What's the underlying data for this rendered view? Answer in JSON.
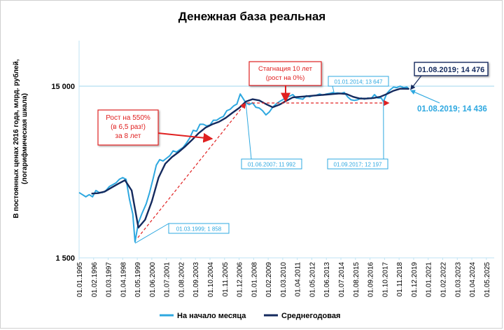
{
  "chart_data": {
    "type": "line",
    "title": "Денежная база реальная",
    "ylabel_line1": "В постоянных ценах 2016 года, млрд. рублей,",
    "ylabel_line2": "(логарифмическая шкала)",
    "y_scale": "log",
    "y_ticks": [
      1500,
      15000
    ],
    "y_tick_labels": [
      "1 500",
      "15 000"
    ],
    "x_tick_labels": [
      "01.01.1995",
      "01.02.1996",
      "01.03.1997",
      "01.04.1998",
      "01.05.1999",
      "01.06.2000",
      "01.07.2001",
      "01.08.2002",
      "01.09.2003",
      "01.10.2004",
      "01.11.2005",
      "01.12.2006",
      "01.01.2008",
      "01.02.2009",
      "01.03.2010",
      "01.04.2011",
      "01.05.2012",
      "01.06.2013",
      "01.07.2014",
      "01.08.2015",
      "01.09.2016",
      "01.10.2017",
      "01.11.2018",
      "01.12.2019",
      "01.01.2021",
      "01.02.2022",
      "01.03.2023",
      "01.04.2024",
      "01.05.2025"
    ],
    "x_range": [
      "1995-01-01",
      "2025-12-01"
    ],
    "legend_position": "bottom",
    "series": [
      {
        "name": "На начало месяца",
        "color": "#2ea8e0",
        "points": [
          [
            "1995-01",
            3600
          ],
          [
            "1995-04",
            3500
          ],
          [
            "1995-07",
            3400
          ],
          [
            "1995-10",
            3500
          ],
          [
            "1996-01",
            3400
          ],
          [
            "1996-04",
            3700
          ],
          [
            "1996-07",
            3600
          ],
          [
            "1996-10",
            3600
          ],
          [
            "1997-01",
            3700
          ],
          [
            "1997-04",
            3900
          ],
          [
            "1997-07",
            4000
          ],
          [
            "1997-10",
            4100
          ],
          [
            "1998-01",
            4300
          ],
          [
            "1998-04",
            4400
          ],
          [
            "1998-07",
            4300
          ],
          [
            "1998-10",
            3300
          ],
          [
            "1999-01",
            2700
          ],
          [
            "1999-03",
            1858
          ],
          [
            "1999-06",
            2400
          ],
          [
            "1999-09",
            2700
          ],
          [
            "2000-01",
            3100
          ],
          [
            "2000-04",
            3600
          ],
          [
            "2000-07",
            4300
          ],
          [
            "2000-10",
            5200
          ],
          [
            "2001-01",
            5600
          ],
          [
            "2001-04",
            5500
          ],
          [
            "2001-07",
            5700
          ],
          [
            "2001-10",
            5900
          ],
          [
            "2002-01",
            6300
          ],
          [
            "2002-04",
            6200
          ],
          [
            "2002-07",
            6400
          ],
          [
            "2002-10",
            6600
          ],
          [
            "2003-01",
            7000
          ],
          [
            "2003-04",
            7500
          ],
          [
            "2003-07",
            8300
          ],
          [
            "2003-10",
            8200
          ],
          [
            "2004-01",
            9000
          ],
          [
            "2004-04",
            9000
          ],
          [
            "2004-07",
            8800
          ],
          [
            "2004-10",
            8900
          ],
          [
            "2005-01",
            9500
          ],
          [
            "2005-04",
            9500
          ],
          [
            "2005-07",
            9800
          ],
          [
            "2005-10",
            10000
          ],
          [
            "2006-01",
            10800
          ],
          [
            "2006-04",
            11000
          ],
          [
            "2006-07",
            11500
          ],
          [
            "2006-10",
            11800
          ],
          [
            "2007-01",
            13500
          ],
          [
            "2007-06",
            11992
          ],
          [
            "2007-09",
            11700
          ],
          [
            "2007-12",
            12000
          ],
          [
            "2008-03",
            11300
          ],
          [
            "2008-06",
            11200
          ],
          [
            "2008-09",
            10800
          ],
          [
            "2008-12",
            10200
          ],
          [
            "2009-03",
            10600
          ],
          [
            "2009-06",
            11300
          ],
          [
            "2009-09",
            11800
          ],
          [
            "2009-12",
            12200
          ],
          [
            "2010-03",
            12500
          ],
          [
            "2010-06",
            12900
          ],
          [
            "2010-09",
            13100
          ],
          [
            "2010-12",
            13400
          ],
          [
            "2011-03",
            12800
          ],
          [
            "2011-06",
            12700
          ],
          [
            "2011-09",
            12600
          ],
          [
            "2011-12",
            13200
          ],
          [
            "2012-03",
            13000
          ],
          [
            "2012-06",
            13200
          ],
          [
            "2012-09",
            13300
          ],
          [
            "2012-12",
            13500
          ],
          [
            "2013-03",
            13300
          ],
          [
            "2013-06",
            13500
          ],
          [
            "2013-09",
            13600
          ],
          [
            "2013-12",
            13800
          ],
          [
            "2014-01",
            13647
          ],
          [
            "2014-04",
            13700
          ],
          [
            "2014-07",
            13600
          ],
          [
            "2014-10",
            13800
          ],
          [
            "2015-01",
            13000
          ],
          [
            "2015-04",
            12500
          ],
          [
            "2015-07",
            12400
          ],
          [
            "2015-10",
            12500
          ],
          [
            "2016-01",
            12800
          ],
          [
            "2016-04",
            12600
          ],
          [
            "2016-07",
            12800
          ],
          [
            "2016-10",
            12700
          ],
          [
            "2017-01",
            13400
          ],
          [
            "2017-04",
            12800
          ],
          [
            "2017-07",
            12800
          ],
          [
            "2017-09",
            12197
          ],
          [
            "2017-12",
            13600
          ],
          [
            "2018-03",
            14300
          ],
          [
            "2018-06",
            14800
          ],
          [
            "2018-09",
            14700
          ],
          [
            "2018-12",
            15000
          ],
          [
            "2019-03",
            14700
          ],
          [
            "2019-06",
            14800
          ],
          [
            "2019-08",
            14436
          ]
        ]
      },
      {
        "name": "Среднегодовая",
        "color": "#142a5e",
        "points": [
          [
            "1995-12",
            3550
          ],
          [
            "1996-06",
            3570
          ],
          [
            "1996-12",
            3650
          ],
          [
            "1997-06",
            3850
          ],
          [
            "1997-12",
            4050
          ],
          [
            "1998-06",
            4250
          ],
          [
            "1998-12",
            3700
          ],
          [
            "1999-06",
            2250
          ],
          [
            "1999-12",
            2500
          ],
          [
            "2000-06",
            3200
          ],
          [
            "2000-12",
            4400
          ],
          [
            "2001-06",
            5300
          ],
          [
            "2001-12",
            5800
          ],
          [
            "2002-06",
            6200
          ],
          [
            "2002-12",
            6700
          ],
          [
            "2003-06",
            7300
          ],
          [
            "2003-12",
            8000
          ],
          [
            "2004-06",
            8600
          ],
          [
            "2004-12",
            9000
          ],
          [
            "2005-06",
            9300
          ],
          [
            "2005-12",
            9800
          ],
          [
            "2006-06",
            10500
          ],
          [
            "2006-12",
            11200
          ],
          [
            "2007-06",
            12200
          ],
          [
            "2007-12",
            12600
          ],
          [
            "2008-06",
            12400
          ],
          [
            "2008-12",
            11800
          ],
          [
            "2009-06",
            11300
          ],
          [
            "2009-12",
            11700
          ],
          [
            "2010-06",
            12300
          ],
          [
            "2010-12",
            12900
          ],
          [
            "2011-06",
            13000
          ],
          [
            "2011-12",
            13100
          ],
          [
            "2012-06",
            13200
          ],
          [
            "2012-12",
            13300
          ],
          [
            "2013-06",
            13400
          ],
          [
            "2013-12",
            13500
          ],
          [
            "2014-06",
            13600
          ],
          [
            "2014-12",
            13500
          ],
          [
            "2015-06",
            13000
          ],
          [
            "2015-12",
            12700
          ],
          [
            "2016-06",
            12700
          ],
          [
            "2016-12",
            12800
          ],
          [
            "2017-06",
            13000
          ],
          [
            "2017-12",
            13500
          ],
          [
            "2018-06",
            14100
          ],
          [
            "2018-12",
            14500
          ],
          [
            "2019-08",
            14476
          ]
        ]
      }
    ],
    "annotations": [
      {
        "id": "growth",
        "lines": [
          "Рост на 550%",
          "(в 6,5 раз!)",
          "за 8 лет"
        ],
        "color": "#e02020"
      },
      {
        "id": "stagnation",
        "lines": [
          "Стагнация 10 лет",
          "(рост на 0%)"
        ],
        "color": "#e02020"
      },
      {
        "id": "end-avg",
        "text": "01.08.2019;  14 476",
        "color": "#142a5e"
      },
      {
        "id": "end-month",
        "text": "01.08.2019;  14 436",
        "color": "#2ea8e0"
      }
    ],
    "point_labels": [
      {
        "date": "1999-03",
        "text": "01.03.1999;  1 858"
      },
      {
        "date": "2007-06",
        "text": "01.06.2007;  11 992"
      },
      {
        "date": "2014-01",
        "text": "01.01.2014;  13 647"
      },
      {
        "date": "2017-09",
        "text": "01.09.2017;  12 197"
      }
    ]
  }
}
